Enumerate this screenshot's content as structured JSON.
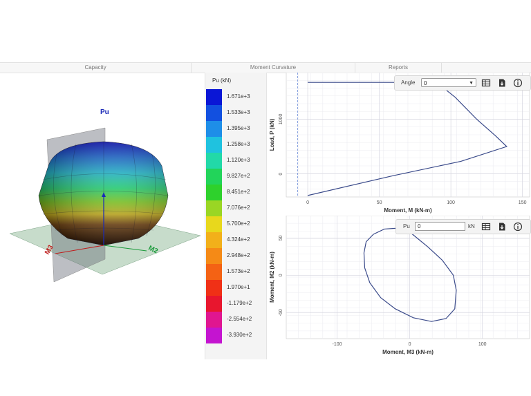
{
  "tabs": [
    {
      "label": "Capacity"
    },
    {
      "label": "Moment Curvature"
    },
    {
      "label": "Reports"
    }
  ],
  "surface_3d": {
    "axis_labels": {
      "vertical": "Pu",
      "left": "M3",
      "right": "M2"
    }
  },
  "legend": {
    "title": "Pu (kN)",
    "items": [
      {
        "value": "1.671e+3",
        "color": "#0a16d6"
      },
      {
        "value": "1.533e+3",
        "color": "#1250e0"
      },
      {
        "value": "1.395e+3",
        "color": "#1e8ee8"
      },
      {
        "value": "1.258e+3",
        "color": "#1fc2df"
      },
      {
        "value": "1.120e+3",
        "color": "#22d9a8"
      },
      {
        "value": "9.827e+2",
        "color": "#22d45a"
      },
      {
        "value": "8.451e+2",
        "color": "#2ed12c"
      },
      {
        "value": "7.076e+2",
        "color": "#9ad624"
      },
      {
        "value": "5.700e+2",
        "color": "#e8d81c"
      },
      {
        "value": "4.324e+2",
        "color": "#f2b01a"
      },
      {
        "value": "2.948e+2",
        "color": "#f58a16"
      },
      {
        "value": "1.573e+2",
        "color": "#f46214"
      },
      {
        "value": "1.970e+1",
        "color": "#f03016"
      },
      {
        "value": "-1.179e+2",
        "color": "#e8162e"
      },
      {
        "value": "-2.554e+2",
        "color": "#e01690"
      },
      {
        "value": "-3.930e+2",
        "color": "#c414d0"
      }
    ]
  },
  "pm_toolbar": {
    "angle_label": "Angle",
    "angle_value": "0"
  },
  "mm_toolbar": {
    "pu_label": "Pu",
    "pu_value": "0",
    "unit": "kN"
  },
  "toolbar_icons": [
    "table-icon",
    "export-icon",
    "info-icon"
  ],
  "chart_data": [
    {
      "type": "line",
      "xlabel": "Moment, M (kN-m)",
      "ylabel": "Load, P (kN)",
      "xlim": [
        -15,
        155
      ],
      "ylim": [
        -420,
        1850
      ],
      "xticks": [
        0,
        50,
        100,
        150
      ],
      "yticks": [
        0,
        1000
      ],
      "grid": true,
      "dashed_x": -7,
      "series": [
        {
          "x": [
            0,
            50,
            90,
            103,
            118,
            131,
            139,
            107,
            60,
            0
          ],
          "y": [
            1671,
            1671,
            1671,
            1400,
            1000,
            700,
            500,
            230,
            -30,
            -393
          ]
        }
      ]
    },
    {
      "type": "line",
      "xlabel": "Moment, M3 (kN-m)",
      "ylabel": "Moment, M2 (kN-m)",
      "xlim": [
        -170,
        165
      ],
      "ylim": [
        -85,
        80
      ],
      "xticks": [
        -100,
        0,
        100
      ],
      "yticks": [
        -50,
        0,
        50
      ],
      "grid": true,
      "series": [
        {
          "x": [
            -20,
            0,
            25,
            45,
            60,
            64,
            62,
            50,
            30,
            5,
            -20,
            -40,
            -55,
            -62,
            -63,
            -60,
            -50,
            -35,
            -20
          ],
          "y": [
            63,
            58,
            38,
            20,
            0,
            -20,
            -45,
            -58,
            -62,
            -57,
            -45,
            -30,
            -10,
            10,
            30,
            45,
            55,
            62,
            63
          ]
        }
      ]
    }
  ]
}
